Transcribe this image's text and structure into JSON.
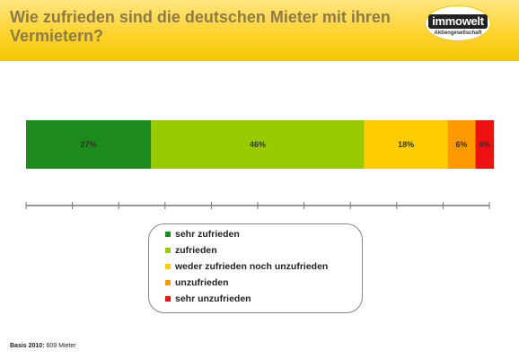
{
  "header": {
    "title": "Wie zufrieden sind die deutschen Mieter mit ihren Vermietern?",
    "background_color": "#fdd32e",
    "logo": {
      "name": "immowelt",
      "subtitle": "Aktiengesellschaft"
    }
  },
  "footer": {
    "basis_label": "Basis 2010:",
    "basis_value": "609 Mieter"
  },
  "chart_data": {
    "type": "bar",
    "orientation": "horizontal-stacked-100",
    "xlim": [
      0,
      100
    ],
    "grid": false,
    "legend_placement": "bottom",
    "title": "",
    "xlabel": "",
    "ylabel": "",
    "series": [
      {
        "name": "sehr zufrieden",
        "value": 27,
        "label": "27%",
        "color": "#1c8a1c"
      },
      {
        "name": "zufrieden",
        "value": 46,
        "label": "46%",
        "color": "#99cc00"
      },
      {
        "name": "weder zufrieden noch unzufrieden",
        "value": 18,
        "label": "18%",
        "color": "#ffcc00"
      },
      {
        "name": "unzufrieden",
        "value": 6,
        "label": "6%",
        "color": "#ff9900"
      },
      {
        "name": "sehr unzufrieden",
        "value": 4,
        "label": "4%",
        "color": "#ee1111"
      }
    ],
    "axis_ticks": 11
  }
}
